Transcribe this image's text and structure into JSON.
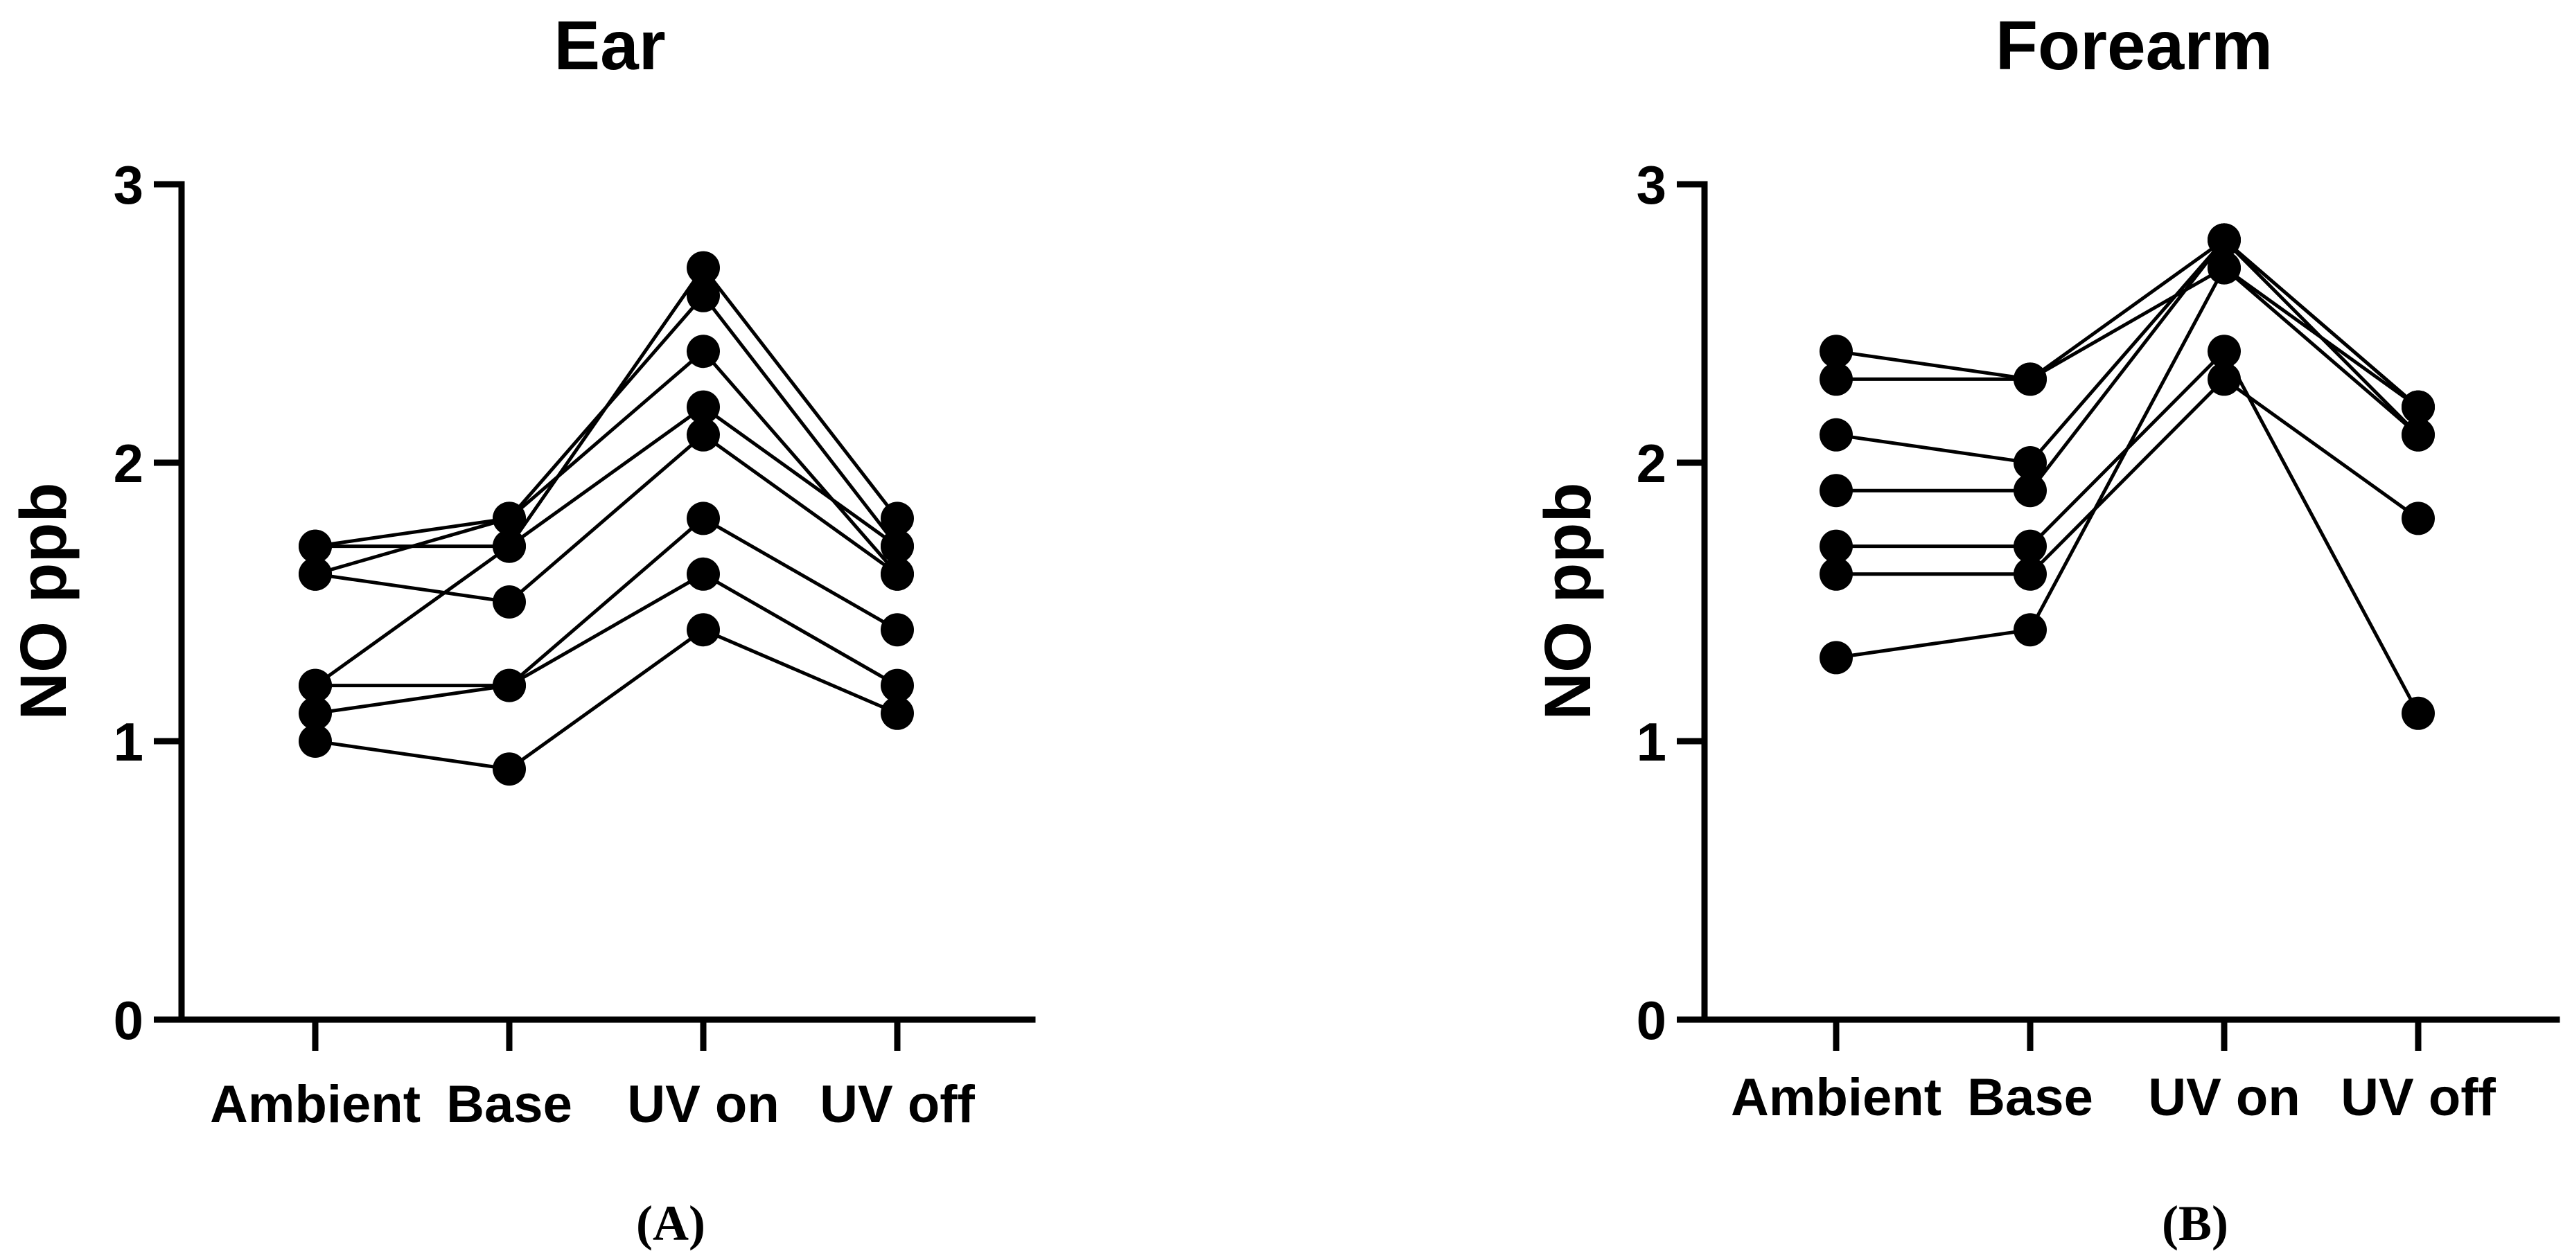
{
  "chart_data": [
    {
      "type": "line",
      "title": "Ear",
      "ylabel": "NO ppb",
      "xlabel": "",
      "categories": [
        "Ambient",
        "Base",
        "UV on",
        "UV off"
      ],
      "ylim": [
        0,
        3
      ],
      "yticks": [
        "0",
        "1",
        "2",
        "3"
      ],
      "grid": false,
      "marker": "filled-circle",
      "series": [
        {
          "values": [
            1.7,
            1.7,
            2.7,
            1.8
          ]
        },
        {
          "values": [
            1.6,
            1.8,
            2.6,
            1.7
          ]
        },
        {
          "values": [
            1.7,
            1.8,
            2.4,
            1.6
          ]
        },
        {
          "values": [
            1.2,
            1.7,
            2.2,
            1.7
          ]
        },
        {
          "values": [
            1.6,
            1.5,
            2.1,
            1.6
          ]
        },
        {
          "values": [
            1.2,
            1.2,
            1.8,
            1.4
          ]
        },
        {
          "values": [
            1.1,
            1.2,
            1.6,
            1.2
          ]
        },
        {
          "values": [
            1.0,
            0.9,
            1.4,
            1.1
          ]
        }
      ],
      "panel_label": "(A)"
    },
    {
      "type": "line",
      "title": "Forearm",
      "ylabel": "NO ppb",
      "xlabel": "",
      "categories": [
        "Ambient",
        "Base",
        "UV on",
        "UV off"
      ],
      "ylim": [
        0,
        3
      ],
      "yticks": [
        "0",
        "1",
        "2",
        "3"
      ],
      "grid": false,
      "marker": "filled-circle",
      "series": [
        {
          "values": [
            2.4,
            2.3,
            2.8,
            2.2
          ]
        },
        {
          "values": [
            2.3,
            2.3,
            2.7,
            2.1
          ]
        },
        {
          "values": [
            2.1,
            2.0,
            2.8,
            2.2
          ]
        },
        {
          "values": [
            1.9,
            1.9,
            2.8,
            2.1
          ]
        },
        {
          "values": [
            1.7,
            1.7,
            2.4,
            1.1
          ]
        },
        {
          "values": [
            1.6,
            1.6,
            2.3,
            1.8
          ]
        },
        {
          "values": [
            1.3,
            1.4,
            2.7,
            2.2
          ]
        }
      ],
      "panel_label": "(B)"
    }
  ],
  "colors": {
    "ink": "#000000",
    "background": "#ffffff"
  }
}
